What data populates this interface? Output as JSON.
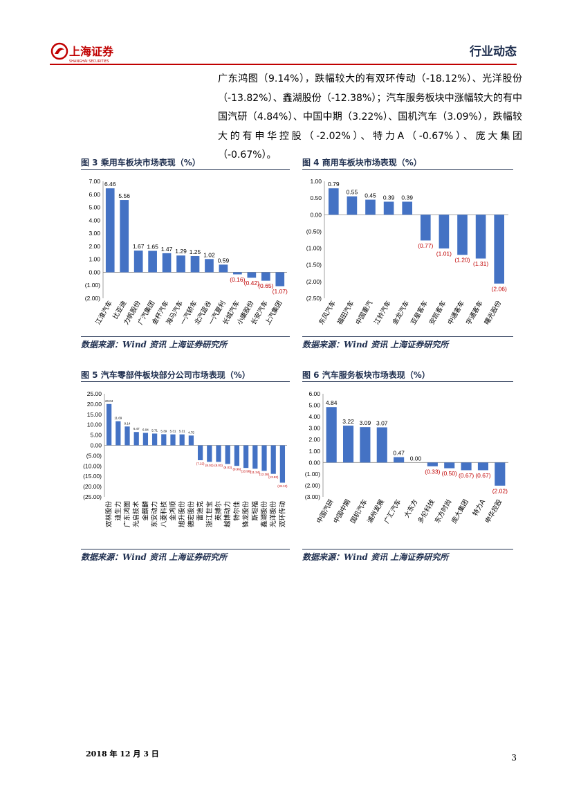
{
  "header": {
    "logo_text": "上海证券",
    "logo_subtext": "SHANGHAI SECURITIES",
    "section": "行业动态"
  },
  "paragraph": "广东鸿图（9.14%），跌幅较大的有双环传动（-18.12%）、光洋股份（-13.82%）、鑫湖股份（-12.38%）；汽车服务板块中涨幅较大的有中国汽研（4.84%）、中国中期（3.22%）、国机汽车（3.09%），跌幅较大的有申华控股（-2.02%）、特力A（-0.67%）、庞大集团（-0.67%）。",
  "colors": {
    "bar": "#4472c4",
    "negative_label": "#c00000",
    "title": "#1f2f4f",
    "rule": "#c00000"
  },
  "figures": [
    {
      "title": "图 3 乘用车板块市场表现（%）",
      "source": "数据来源：Wind 资讯 上海证券研究所",
      "chart_data": {
        "type": "bar",
        "categories": [
          "江淮汽车",
          "比亚迪",
          "力帆股份",
          "广汽集团",
          "金杯汽车",
          "海马汽车",
          "一汽轿车",
          "北汽蓝谷",
          "一汽夏利",
          "长城汽车",
          "小康股份",
          "长安汽车",
          "上汽集团"
        ],
        "values": [
          6.46,
          5.56,
          1.67,
          1.65,
          1.47,
          1.29,
          1.25,
          1.02,
          0.59,
          -0.16,
          -0.42,
          -0.65,
          -1.07
        ],
        "labels": [
          "6.46",
          "5.56",
          "1.67",
          "1.65",
          "1.47",
          "1.29",
          "1.25",
          "1.02",
          "0.59",
          "(0.16)",
          "(0.42)",
          "(0.65)",
          "(1.07)"
        ],
        "ylim": [
          -2,
          7
        ],
        "yticks": [
          "7.00",
          "6.00",
          "5.00",
          "4.00",
          "3.00",
          "2.00",
          "1.00",
          "0.00",
          "(1.00)",
          "(2.00)"
        ]
      }
    },
    {
      "title": "图 4 商用车板块市场表现（%）",
      "source": "数据来源：Wind 资讯 上海证券研究所",
      "chart_data": {
        "type": "bar",
        "categories": [
          "东风汽车",
          "福田汽车",
          "中国重汽",
          "江铃汽车",
          "金龙汽车",
          "亚星客车",
          "安凯客车",
          "中通客车",
          "宇通客车",
          "曙光股份"
        ],
        "values": [
          0.79,
          0.55,
          0.45,
          0.39,
          0.39,
          -0.77,
          -1.01,
          -1.2,
          -1.31,
          -2.06
        ],
        "labels": [
          "0.79",
          "0.55",
          "0.45",
          "0.39",
          "0.39",
          "(0.77)",
          "(1.01)",
          "(1.20)",
          "(1.31)",
          "(2.06)"
        ],
        "ylim": [
          -2.5,
          1
        ],
        "yticks": [
          "1.00",
          "0.50",
          "0.00",
          "(0.50)",
          "(1.00)",
          "(1.50)",
          "(2.00)",
          "(2.50)"
        ]
      }
    },
    {
      "title": "图 5 汽车零部件板块部分公司市场表现（%）",
      "source": "数据来源：Wind 资讯 上海证券研究所",
      "chart_data": {
        "type": "bar",
        "categories": [
          "双林股份",
          "迪生力",
          "广东鸿图",
          "光启技术",
          "金麒麟",
          "东安动力",
          "八菱科技",
          "金鸿顺",
          "旭升股份",
          "德宏股份",
          "雷迪克",
          "浙江世宝",
          "英搏尔",
          "越博动力",
          "特尔佳",
          "锋龙股份",
          "斯坦福",
          "鑫湖股份",
          "光洋股份",
          "双环传动"
        ],
        "values": [
          20.04,
          11.69,
          9.14,
          6.47,
          6.04,
          5.71,
          5.39,
          5.31,
          5.31,
          4.75,
          -7.22,
          -8.02,
          -8.03,
          -9.03,
          -9.96,
          -10.96,
          -11.34,
          -12.38,
          -13.82,
          -18.12
        ],
        "labels": [
          "20.04",
          "11.69",
          "9.14",
          "6.47",
          "6.04",
          "5.71",
          "5.39",
          "5.31",
          "5.31",
          "4.75",
          "(7.22)",
          "(8.02)",
          "(8.03)",
          "(9.03)",
          "(9.96)",
          "(10.96)",
          "(11.34)",
          "(12.38)",
          "(13.82)",
          "(18.12)"
        ],
        "ylim": [
          -25,
          25
        ],
        "yticks": [
          "25.00",
          "20.00",
          "15.00",
          "10.00",
          "5.00",
          "0.00",
          "(5.00)",
          "(10.00)",
          "(15.00)",
          "(20.00)",
          "(25.00)"
        ]
      }
    },
    {
      "title": "图 6 汽车服务板块市场表现（%）",
      "source": "数据来源：Wind 资讯 上海证券研究所",
      "chart_data": {
        "type": "bar",
        "categories": [
          "中国汽研",
          "中国中期",
          "国机汽车",
          "浦州发展",
          "广汇汽车",
          "大东方",
          "多伦科技",
          "东方时尚",
          "庞大集团",
          "特力A",
          "申华控股"
        ],
        "values": [
          4.84,
          3.22,
          3.09,
          3.07,
          0.47,
          0.0,
          -0.33,
          -0.5,
          -0.67,
          -0.67,
          -2.02
        ],
        "labels": [
          "4.84",
          "3.22",
          "3.09",
          "3.07",
          "0.47",
          "0.00",
          "(0.33)",
          "(0.50)",
          "(0.67)",
          "(0.67)",
          "(2.02)"
        ],
        "ylim": [
          -3,
          6
        ],
        "yticks": [
          "6.00",
          "5.00",
          "4.00",
          "3.00",
          "2.00",
          "1.00",
          "0.00",
          "(1.00)",
          "(2.00)",
          "(3.00)"
        ]
      }
    }
  ],
  "footer": {
    "date": "2018 年 12 月 3 日",
    "page": "3"
  }
}
